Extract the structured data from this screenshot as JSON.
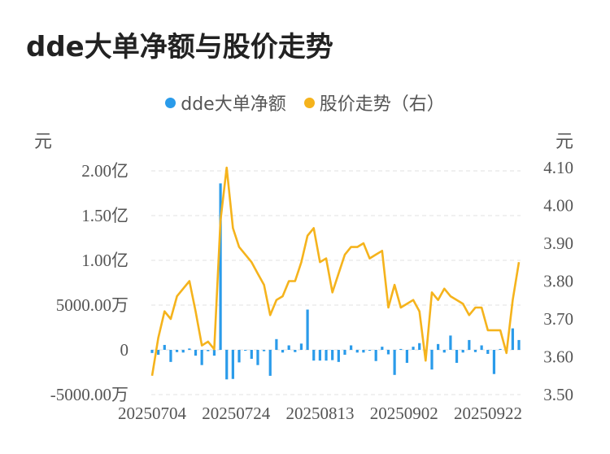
{
  "title": "dde大单净额与股价走势",
  "legend": {
    "series1": "dde大单净额",
    "series2": "股价走势（右）"
  },
  "units": {
    "left": "元",
    "right": "元"
  },
  "colors": {
    "bar": "#2a9bea",
    "line": "#f5b31c",
    "grid": "#e6e6e6",
    "axis_text": "#555555"
  },
  "chart_data": {
    "type": "bar+line",
    "left_axis": {
      "ticks": [
        20000,
        15000,
        10000,
        5000,
        0,
        -5000
      ],
      "tick_labels": [
        "2.00亿",
        "1.50亿",
        "1.00亿",
        "5000.00万",
        "0",
        "-5000.00万"
      ],
      "range": [
        -5000,
        20000
      ],
      "unit_note": "万元"
    },
    "right_axis": {
      "ticks": [
        4.1,
        4.0,
        3.9,
        3.8,
        3.7,
        3.6,
        3.5
      ],
      "tick_labels": [
        "4.10",
        "4.00",
        "3.90",
        "3.80",
        "3.70",
        "3.60",
        "3.50"
      ],
      "range": [
        3.5,
        4.1
      ]
    },
    "x_labels": [
      "20250704",
      "20250724",
      "20250813",
      "20250902",
      "20250922"
    ],
    "series": [
      {
        "name": "dde大单净额",
        "type": "bar",
        "values": [
          -350,
          -550,
          550,
          -1350,
          -250,
          -300,
          150,
          -650,
          -1700,
          -150,
          -650,
          18600,
          -3300,
          -3250,
          -1400,
          -100,
          -1000,
          -1700,
          -150,
          -2900,
          1200,
          -300,
          500,
          -250,
          700,
          4500,
          -1200,
          -1200,
          -1200,
          -1150,
          -1350,
          -550,
          500,
          -300,
          -300,
          -100,
          -1250,
          350,
          -500,
          -2800,
          100,
          -1450,
          350,
          750,
          -350,
          -2200,
          650,
          -300,
          1600,
          -1450,
          -300,
          1100,
          -250,
          500,
          -450,
          -2700,
          100,
          -150,
          2400,
          1100
        ]
      },
      {
        "name": "股价走势（右）",
        "type": "line",
        "values": [
          3.55,
          3.65,
          3.72,
          3.7,
          3.76,
          3.78,
          3.8,
          3.72,
          3.63,
          3.64,
          3.62,
          3.96,
          4.1,
          3.94,
          3.89,
          3.87,
          3.85,
          3.82,
          3.79,
          3.71,
          3.75,
          3.76,
          3.8,
          3.8,
          3.85,
          3.92,
          3.94,
          3.85,
          3.86,
          3.77,
          3.82,
          3.87,
          3.89,
          3.89,
          3.9,
          3.86,
          3.87,
          3.88,
          3.73,
          3.79,
          3.73,
          3.74,
          3.75,
          3.72,
          3.59,
          3.77,
          3.75,
          3.78,
          3.76,
          3.75,
          3.74,
          3.71,
          3.73,
          3.73,
          3.67,
          3.67,
          3.67,
          3.61,
          3.75,
          3.85
        ]
      }
    ],
    "grid": true,
    "legend_position": "top-center"
  }
}
